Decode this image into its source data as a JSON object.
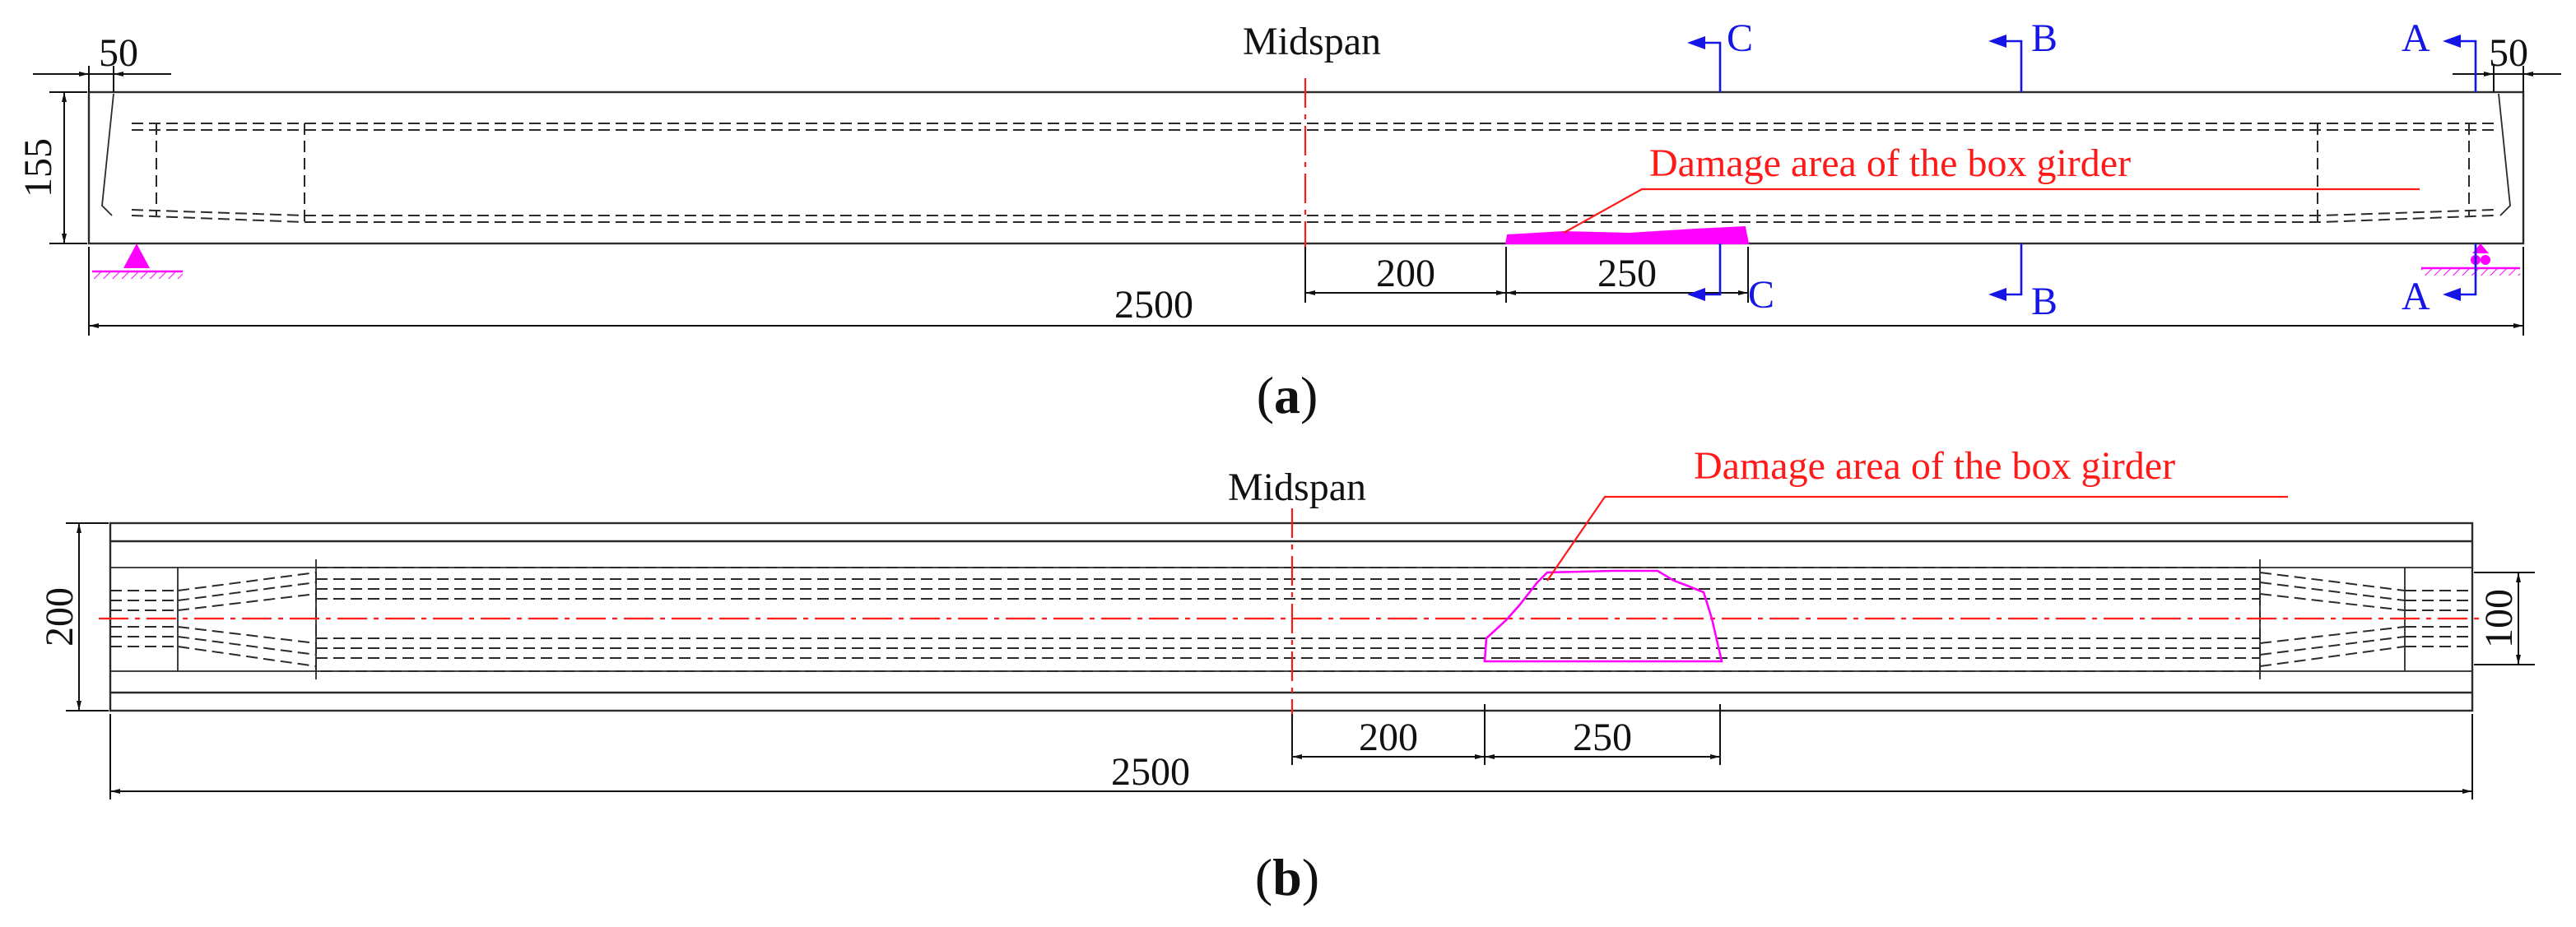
{
  "figure": {
    "elevation": {
      "caption_paren_open": "(",
      "caption_letter": "a",
      "caption_paren_close": ")",
      "midspan_label": "Midspan",
      "damage_label": "Damage area of the box girder",
      "dims": {
        "left_end": "50",
        "right_end": "50",
        "height": "155",
        "total_length": "2500",
        "midspan_to_damage": "200",
        "damage_length": "250"
      },
      "sections": {
        "a_top": "A",
        "a_bottom": "A",
        "b_top": "B",
        "b_bottom": "B",
        "c_top": "C",
        "c_bottom": "C"
      }
    },
    "plan": {
      "caption_paren_open": "(",
      "caption_letter": "b",
      "caption_paren_close": ")",
      "midspan_label": "Midspan",
      "damage_label": "Damage area of the box girder",
      "dims": {
        "width": "200",
        "right_width": "100",
        "total_length": "2500",
        "midspan_to_damage": "200",
        "damage_length": "250"
      }
    },
    "colors": {
      "section_marks": "#1515e6",
      "centerline_and_damage_label": "#ff1a1a",
      "damage_area_and_supports": "#ff00ff",
      "drawing_lines": "#2a2a2a"
    }
  }
}
